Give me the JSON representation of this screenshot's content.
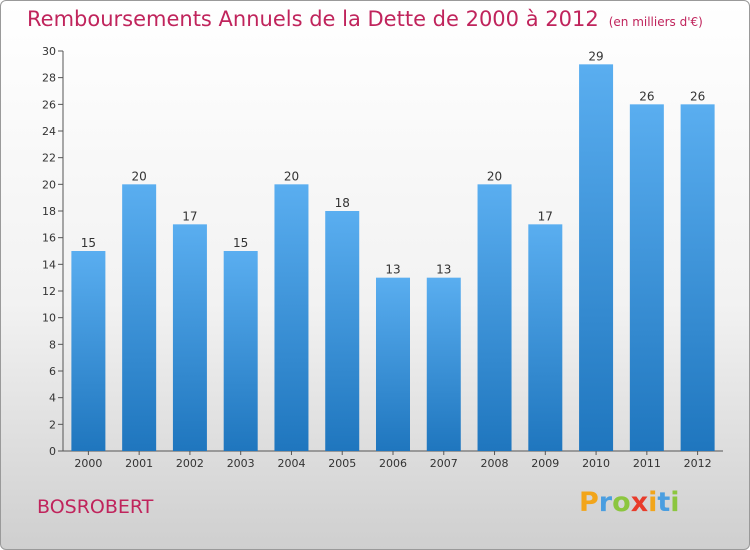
{
  "title": "Remboursements Annuels de la Dette de 2000 à 2012",
  "unit": "(en milliers d'€)",
  "commune": "BOSROBERT",
  "brand": {
    "letters": [
      "P",
      "r",
      "o",
      "x",
      "i",
      "t",
      "i"
    ],
    "colors": [
      "#f2a51a",
      "#4a9ee0",
      "#8cc63f",
      "#e83b2a",
      "#f2a51a",
      "#4a9ee0",
      "#8cc63f"
    ]
  },
  "colors": {
    "bar_top": "#5aaef0",
    "bar_bottom": "#1f76be",
    "title": "#c0245c"
  },
  "chart_data": {
    "type": "bar",
    "categories": [
      "2000",
      "2001",
      "2002",
      "2003",
      "2004",
      "2005",
      "2006",
      "2007",
      "2008",
      "2009",
      "2010",
      "2011",
      "2012"
    ],
    "values": [
      15,
      20,
      17,
      15,
      20,
      18,
      13,
      13,
      20,
      17,
      29,
      26,
      26
    ],
    "ylim": [
      0,
      30
    ],
    "yticks": [
      0,
      2,
      4,
      6,
      8,
      10,
      12,
      14,
      16,
      18,
      20,
      22,
      24,
      26,
      28,
      30
    ],
    "grid": false,
    "data_labels": true
  }
}
